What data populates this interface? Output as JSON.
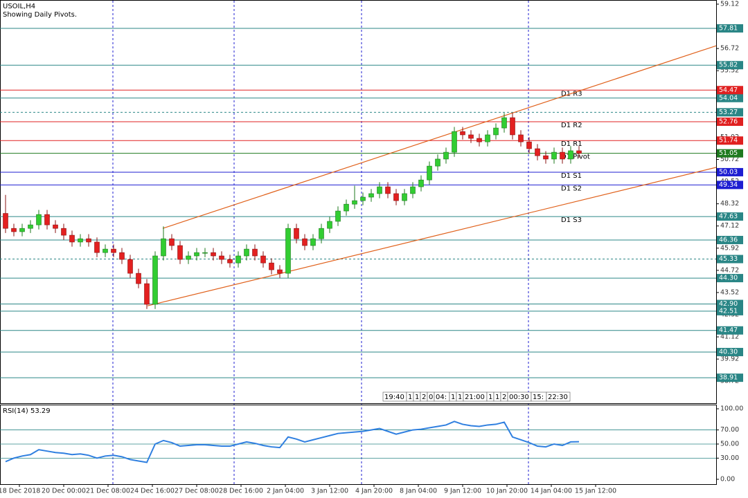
{
  "chart_data": {
    "type": "candlestick",
    "title": "USOIL,H4",
    "subtitle": "Showing Daily Pivots.",
    "ylim": [
      37.53,
      59.27
    ],
    "yticks": [
      59.12,
      56.72,
      55.52,
      51.92,
      50.72,
      49.52,
      48.32,
      47.12,
      45.92,
      44.72,
      43.52,
      42.32,
      41.12,
      39.92,
      38.72
    ],
    "x_labels": [
      "18 Dec 2018",
      "20 Dec 00:00",
      "21 Dec 08:00",
      "24 Dec 16:00",
      "27 Dec 08:00",
      "28 Dec 16:00",
      "2 Jan 04:00",
      "3 Jan 12:00",
      "4 Jan 20:00",
      "8 Jan 04:00",
      "9 Jan 12:00",
      "10 Jan 20:00",
      "14 Jan 04:00",
      "15 Jan 12:00"
    ],
    "up_color": "#32cd32",
    "down_color": "#e32020",
    "open": [
      47.8,
      46.99,
      46.81,
      46.99,
      47.18,
      47.74,
      47.18,
      46.99,
      46.62,
      46.25,
      46.43,
      46.25,
      45.68,
      45.87,
      45.68,
      45.31,
      44.56,
      44.0,
      42.88,
      45.5,
      46.43,
      46.06,
      45.31,
      45.5,
      45.68,
      45.68,
      45.5,
      45.31,
      45.12,
      45.5,
      45.87,
      45.5,
      45.12,
      44.75,
      44.56,
      46.99,
      46.43,
      46.06,
      46.43,
      46.99,
      47.37,
      47.93,
      48.3,
      48.49,
      48.68,
      48.87,
      49.24,
      48.87,
      48.49,
      48.87,
      49.24,
      49.61,
      50.36,
      50.74,
      51.11,
      52.23,
      52.05,
      51.86,
      51.67,
      52.05,
      52.42,
      52.98,
      52.05,
      51.67,
      51.3,
      50.92,
      50.74,
      51.11,
      50.74,
      51.19
    ],
    "high": [
      48.8,
      47.24,
      47.24,
      47.43,
      47.99,
      47.99,
      47.43,
      47.24,
      46.87,
      46.68,
      46.68,
      46.5,
      46.12,
      46.12,
      45.93,
      45.56,
      44.81,
      44.25,
      45.75,
      47.1,
      46.68,
      46.31,
      45.75,
      45.93,
      45.93,
      45.93,
      45.75,
      45.56,
      45.75,
      46.12,
      46.12,
      45.75,
      45.37,
      45.0,
      47.24,
      47.24,
      46.68,
      46.68,
      47.24,
      47.62,
      48.18,
      48.55,
      49.3,
      48.93,
      49.12,
      49.49,
      49.49,
      49.12,
      49.12,
      49.49,
      49.86,
      50.61,
      50.99,
      51.36,
      52.48,
      52.48,
      52.3,
      52.11,
      52.3,
      52.67,
      53.23,
      53.23,
      52.3,
      51.92,
      51.55,
      51.17,
      51.36,
      51.36,
      51.44,
      51.44
    ],
    "low": [
      46.74,
      46.56,
      46.56,
      46.74,
      46.93,
      46.93,
      46.74,
      46.37,
      46.0,
      46.0,
      46.0,
      45.43,
      45.43,
      45.43,
      45.06,
      44.31,
      43.75,
      42.63,
      42.63,
      45.25,
      45.81,
      45.06,
      45.06,
      45.25,
      45.43,
      45.25,
      45.06,
      44.87,
      44.87,
      45.25,
      45.25,
      44.87,
      44.5,
      44.31,
      44.31,
      46.18,
      45.81,
      45.81,
      46.18,
      46.74,
      47.12,
      47.68,
      48.05,
      48.24,
      48.43,
      48.62,
      48.62,
      48.24,
      48.24,
      48.62,
      48.99,
      49.36,
      50.11,
      50.49,
      50.86,
      51.8,
      51.61,
      51.42,
      51.42,
      51.8,
      52.17,
      51.8,
      51.42,
      51.05,
      50.67,
      50.49,
      50.49,
      50.49,
      50.49,
      50.8
    ],
    "close": [
      46.99,
      46.81,
      46.99,
      47.18,
      47.74,
      47.18,
      46.99,
      46.62,
      46.25,
      46.43,
      46.25,
      45.68,
      45.87,
      45.68,
      45.31,
      44.56,
      44.0,
      42.88,
      45.5,
      46.43,
      46.06,
      45.31,
      45.5,
      45.68,
      45.68,
      45.5,
      45.31,
      45.12,
      45.5,
      45.87,
      45.5,
      45.12,
      44.75,
      44.56,
      46.99,
      46.43,
      46.06,
      46.43,
      46.99,
      47.37,
      47.93,
      48.3,
      48.49,
      48.68,
      48.87,
      49.24,
      48.87,
      48.49,
      48.87,
      49.24,
      49.61,
      50.36,
      50.74,
      51.11,
      52.23,
      52.05,
      51.86,
      51.67,
      52.05,
      52.42,
      52.98,
      52.05,
      51.67,
      51.3,
      50.92,
      50.74,
      51.11,
      50.74,
      51.19,
      51.05
    ],
    "levels": [
      {
        "value": 57.81,
        "color": "#2a8686",
        "style": "solid"
      },
      {
        "value": 55.82,
        "color": "#2a8686",
        "style": "solid"
      },
      {
        "value": 54.04,
        "color": "#2a8686",
        "style": "solid"
      },
      {
        "value": 53.27,
        "color": "#2a8686",
        "style": "dashed"
      },
      {
        "value": 46.36,
        "color": "#2a8686",
        "style": "solid"
      },
      {
        "value": 45.33,
        "color": "#2a8686",
        "style": "dashed"
      },
      {
        "value": 44.3,
        "label": "44.30",
        "color": "#2a8686",
        "style": "solid"
      },
      {
        "value": 42.9,
        "label": "42.90",
        "color": "#2a8686",
        "style": "solid"
      },
      {
        "value": 42.51,
        "color": "#2a8686",
        "style": "solid"
      },
      {
        "value": 41.47,
        "color": "#2a8686",
        "style": "solid"
      },
      {
        "value": 40.3,
        "label": "40.30",
        "color": "#2a8686",
        "style": "solid"
      },
      {
        "value": 38.91,
        "color": "#2a8686",
        "style": "solid"
      }
    ],
    "pivots": [
      {
        "name": "D1 R3",
        "value": 54.47,
        "color": "#e02020"
      },
      {
        "name": "D1 R2",
        "value": 52.76,
        "color": "#e02020"
      },
      {
        "name": "D1 R1",
        "value": 51.74,
        "color": "#e02020"
      },
      {
        "name": "D1 Pivot",
        "value": 51.05,
        "color": "#1f7a1f"
      },
      {
        "name": "D1 S1",
        "value": 50.03,
        "color": "#1e1ed2"
      },
      {
        "name": "D1 S2",
        "value": 49.34,
        "color": "#1e1ed2"
      },
      {
        "name": "D1 S3",
        "value": 47.63,
        "color": "#2a8686"
      }
    ],
    "trendlines": [
      {
        "start": 46.99,
        "end": 56.87,
        "color": "#e0601a"
      },
      {
        "start": 42.8,
        "end": 50.29,
        "color": "#e0601a"
      }
    ],
    "time_markers": [
      "19:40",
      "1",
      "1",
      "2",
      "0",
      "04:",
      "1",
      "1",
      "21:00",
      "1",
      "1",
      "2",
      "00:30",
      "15:",
      "22:30"
    ],
    "rsi": {
      "title": "RSI(14) 53.29",
      "color": "#2f7fe0",
      "ylim": [
        -6.9,
        104.9
      ],
      "yticks": [
        {
          "value": 100,
          "label": "100.00"
        },
        {
          "value": 70,
          "label": "70.00"
        },
        {
          "value": 50,
          "label": "50.00"
        },
        {
          "value": 30,
          "label": "30.00"
        },
        {
          "value": 0,
          "label": "0.00"
        }
      ],
      "levels": [
        70,
        50,
        30
      ],
      "values": [
        25,
        30,
        33,
        35,
        42,
        40,
        38,
        37,
        35,
        36,
        34,
        30,
        33,
        34,
        32,
        28,
        26,
        24,
        50,
        55,
        52,
        47,
        48,
        49,
        49,
        48,
        47,
        47,
        50,
        53,
        51,
        48,
        46,
        45,
        60,
        57,
        53,
        56,
        59,
        62,
        65,
        66,
        67,
        68,
        70,
        72,
        68,
        64,
        67,
        70,
        71,
        73,
        75,
        77,
        82,
        78,
        76,
        75,
        77,
        78,
        81,
        60,
        56,
        52,
        47,
        46,
        50,
        48,
        53,
        53.29
      ]
    }
  }
}
